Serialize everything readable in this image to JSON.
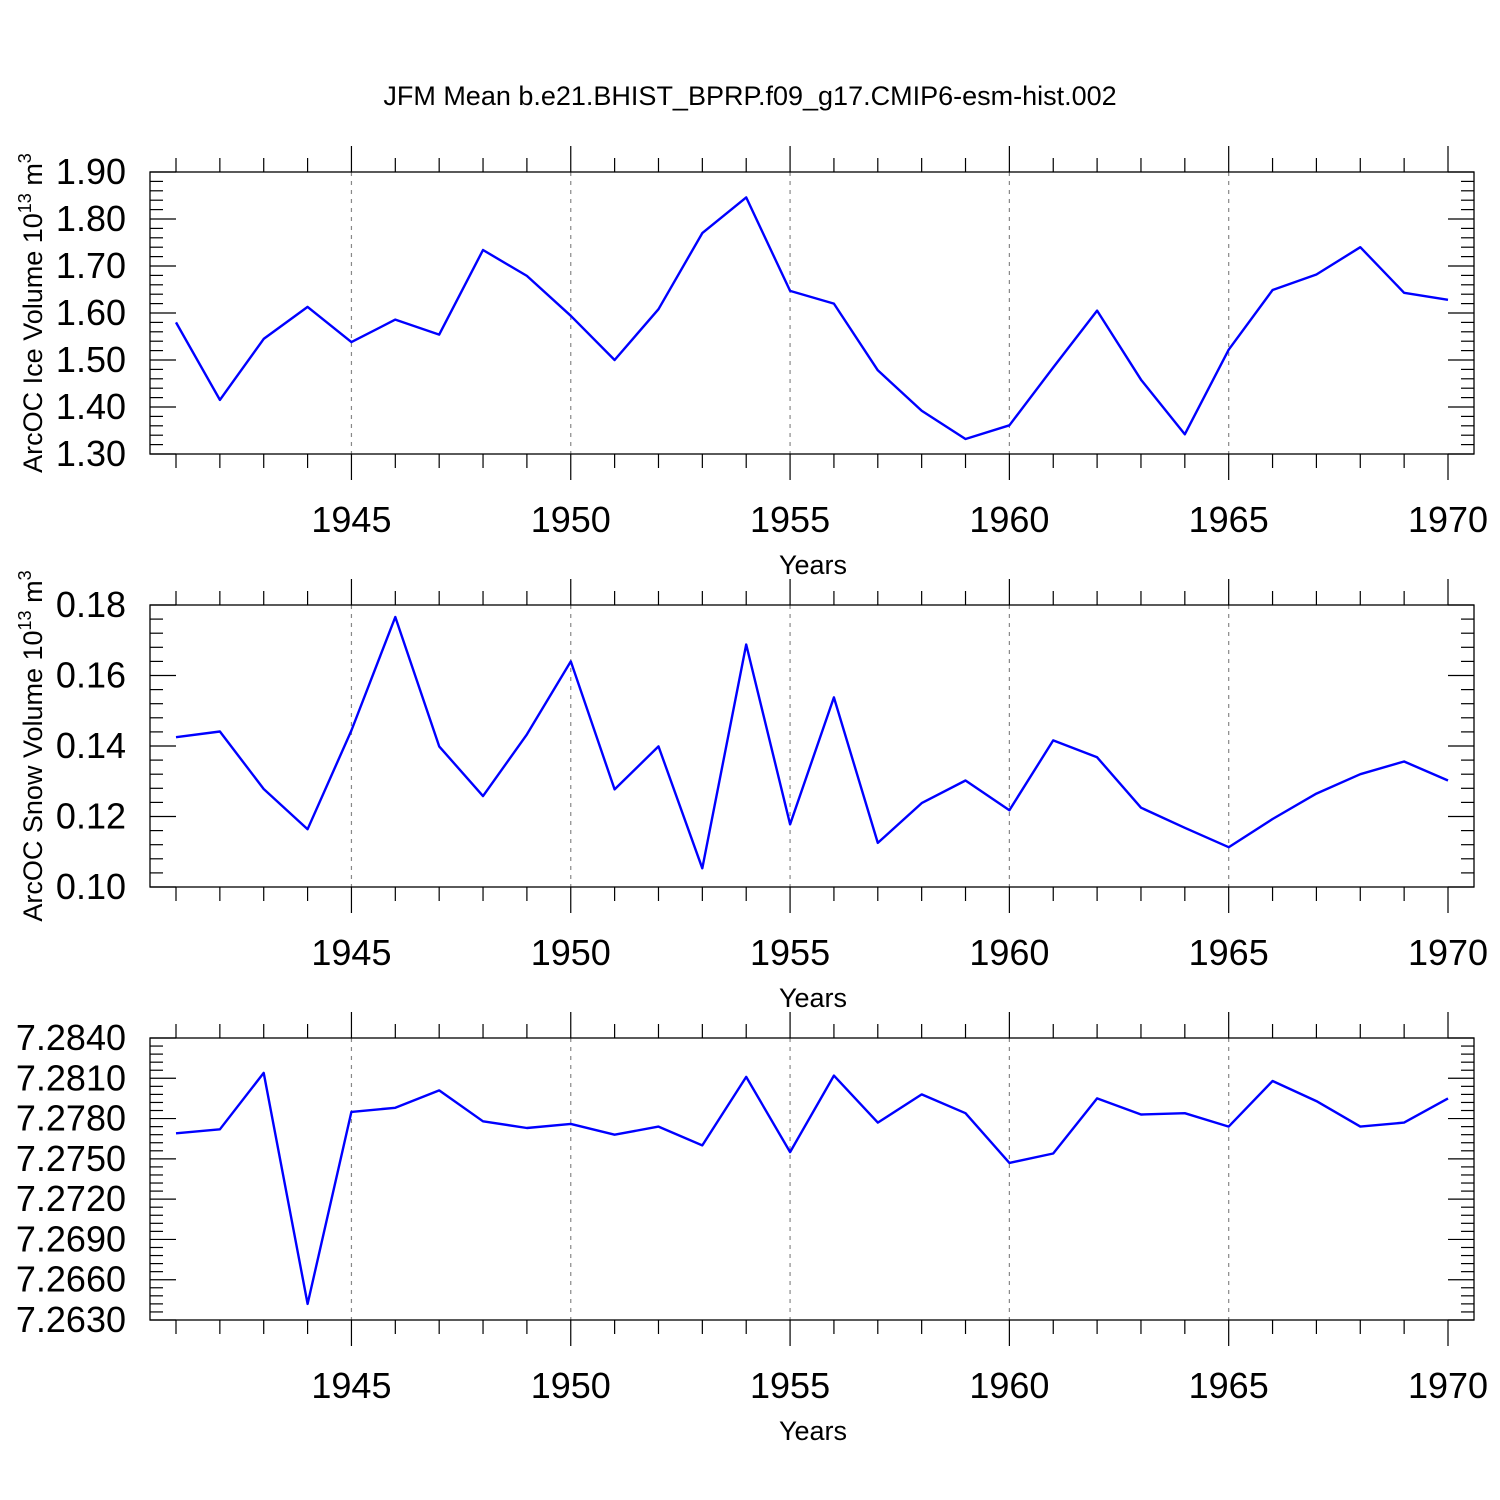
{
  "title": "JFM Mean b.e21.BHIST_BPRP.f09_g17.CMIP6-esm-hist.002",
  "colors": {
    "series": "#0000ff",
    "grid": "#888888",
    "axis": "#000000"
  },
  "chart_data": [
    {
      "type": "line",
      "ylabel": "ArcOC Ice Volume 10",
      "ylabel_exp": "13",
      "ylabel_unit": " m",
      "ylabel_unit_exp": "3",
      "xlabel": "Years",
      "xlim": [
        1941,
        1970
      ],
      "ylim": [
        1.3,
        1.9
      ],
      "yticks": [
        1.3,
        1.4,
        1.5,
        1.6,
        1.7,
        1.8,
        1.9
      ],
      "ytick_labels": [
        "1.30",
        "1.40",
        "1.50",
        "1.60",
        "1.70",
        "1.80",
        "1.90"
      ],
      "xticks": [
        1945,
        1950,
        1955,
        1960,
        1965,
        1970
      ],
      "xtick_labels": [
        "1945",
        "1950",
        "1955",
        "1960",
        "1965",
        "1970"
      ],
      "grid_x": true,
      "x": [
        1941,
        1942,
        1943,
        1944,
        1945,
        1946,
        1947,
        1948,
        1949,
        1950,
        1951,
        1952,
        1953,
        1954,
        1955,
        1956,
        1957,
        1958,
        1959,
        1960,
        1961,
        1962,
        1963,
        1964,
        1965,
        1966,
        1967,
        1968,
        1969,
        1970
      ],
      "values": [
        1.58,
        1.415,
        1.545,
        1.613,
        1.538,
        1.586,
        1.554,
        1.734,
        1.679,
        1.594,
        1.5,
        1.608,
        1.77,
        1.846,
        1.647,
        1.62,
        1.478,
        1.392,
        1.332,
        1.361,
        1.484,
        1.605,
        1.458,
        1.342,
        1.522,
        1.649,
        1.682,
        1.74,
        1.643,
        1.628
      ]
    },
    {
      "type": "line",
      "ylabel": "ArcOC Snow Volume 10",
      "ylabel_exp": "13",
      "ylabel_unit": " m",
      "ylabel_unit_exp": "3",
      "xlabel": "Years",
      "xlim": [
        1941,
        1970
      ],
      "ylim": [
        0.1,
        0.18
      ],
      "yticks": [
        0.1,
        0.12,
        0.14,
        0.16,
        0.18
      ],
      "ytick_labels": [
        "0.10",
        "0.12",
        "0.14",
        "0.16",
        "0.18"
      ],
      "xticks": [
        1945,
        1950,
        1955,
        1960,
        1965,
        1970
      ],
      "xtick_labels": [
        "1945",
        "1950",
        "1955",
        "1960",
        "1965",
        "1970"
      ],
      "grid_x": true,
      "x": [
        1941,
        1942,
        1943,
        1944,
        1945,
        1946,
        1947,
        1948,
        1949,
        1950,
        1951,
        1952,
        1953,
        1954,
        1955,
        1956,
        1957,
        1958,
        1959,
        1960,
        1961,
        1962,
        1963,
        1964,
        1965,
        1966,
        1967,
        1968,
        1969,
        1970
      ],
      "values": [
        0.1425,
        0.1441,
        0.1278,
        0.1164,
        0.1444,
        0.1766,
        0.1399,
        0.1258,
        0.1433,
        0.164,
        0.1277,
        0.1399,
        0.1053,
        0.1688,
        0.1178,
        0.1538,
        0.1125,
        0.1238,
        0.1302,
        0.1218,
        0.1416,
        0.1368,
        0.1225,
        0.1168,
        0.1113,
        0.1193,
        0.1265,
        0.132,
        0.1356,
        0.1302
      ]
    },
    {
      "type": "line",
      "ylabel": "",
      "xlabel": "Years",
      "xlim": [
        1941,
        1970
      ],
      "ylim": [
        7.263,
        7.284
      ],
      "yticks": [
        7.263,
        7.266,
        7.269,
        7.272,
        7.275,
        7.278,
        7.281,
        7.284
      ],
      "ytick_labels": [
        "7.2630",
        "7.2660",
        "7.2690",
        "7.2720",
        "7.2750",
        "7.2780",
        "7.2810",
        "7.2840"
      ],
      "xticks": [
        1945,
        1950,
        1955,
        1960,
        1965,
        1970
      ],
      "xtick_labels": [
        "1945",
        "1950",
        "1955",
        "1960",
        "1965",
        "1970"
      ],
      "grid_x": true,
      "x": [
        1941,
        1942,
        1943,
        1944,
        1945,
        1946,
        1947,
        1948,
        1949,
        1950,
        1951,
        1952,
        1953,
        1954,
        1955,
        1956,
        1957,
        1958,
        1959,
        1960,
        1961,
        1962,
        1963,
        1964,
        1965,
        1966,
        1967,
        1968,
        1969,
        1970
      ],
      "values": [
        7.2769,
        7.2772,
        7.2814,
        7.2642,
        7.2785,
        7.2788,
        7.2801,
        7.2778,
        7.2773,
        7.2776,
        7.2768,
        7.2774,
        7.276,
        7.2811,
        7.2755,
        7.2812,
        7.2777,
        7.2798,
        7.2784,
        7.2747,
        7.2754,
        7.2795,
        7.2783,
        7.2784,
        7.2774,
        7.2808,
        7.2793,
        7.2774,
        7.2777,
        7.2795
      ]
    }
  ]
}
